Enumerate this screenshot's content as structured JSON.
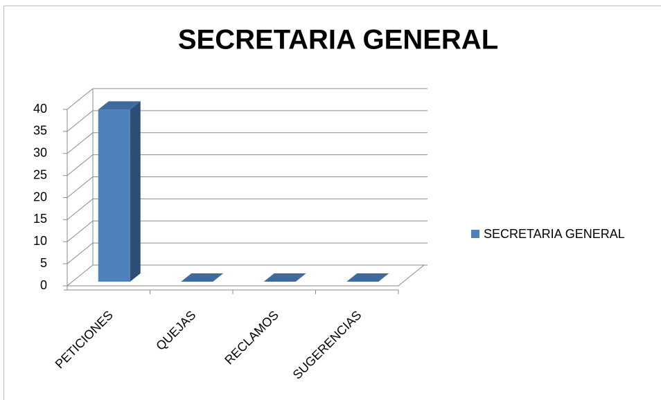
{
  "chart_data": {
    "type": "bar3d",
    "title": "SECRETARIA GENERAL",
    "categories": [
      "PETICIONES",
      "QUEJAS",
      "RECLAMOS",
      "SUGERENCIAS"
    ],
    "series": [
      {
        "name": "SECRETARIA GENERAL",
        "color": "#4f81bd",
        "values": [
          39,
          0,
          0,
          0
        ]
      }
    ],
    "ylim": [
      0,
      40
    ],
    "yticks": [
      0,
      5,
      10,
      15,
      20,
      25,
      30,
      35,
      40
    ],
    "grid": true,
    "legend": "right"
  }
}
